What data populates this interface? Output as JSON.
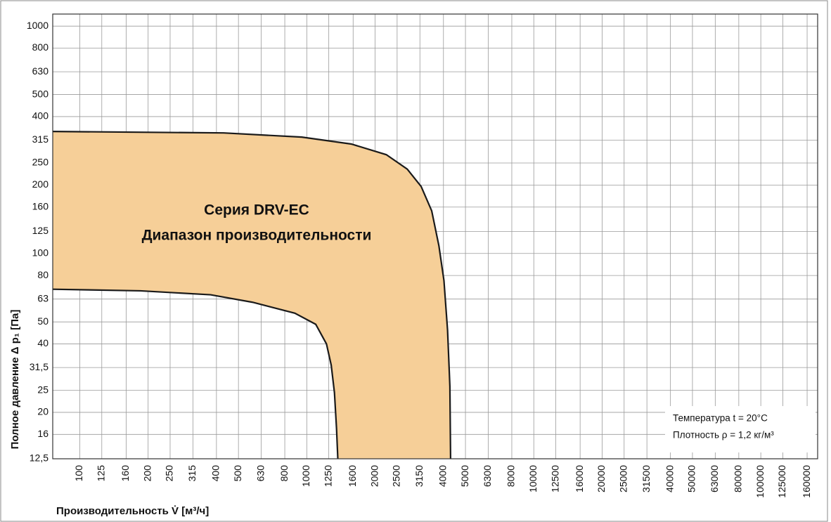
{
  "chart_data": {
    "type": "range",
    "y_label": "Полное давление Δ p₁ [Па]",
    "x_label": "Производительность V̇ [м³/ч]",
    "annotation_lines": [
      "Серия DRV-EC",
      "Диапазон производительности"
    ],
    "notes": [
      "Температура t = 20°C",
      "Плотность ρ = 1,2 кг/м³"
    ],
    "log_x": true,
    "log_y": true,
    "grid": true,
    "fill_color": "#f6cf98",
    "edge_color": "#1a1a1a",
    "xlim": [
      76,
      178000
    ],
    "ylim": [
      12.5,
      1130
    ],
    "xticks": [
      100,
      125,
      160,
      200,
      250,
      315,
      400,
      500,
      630,
      800,
      1000,
      1250,
      1600,
      2000,
      2500,
      3150,
      4000,
      5000,
      6300,
      8000,
      10000,
      12500,
      16000,
      20000,
      25000,
      31500,
      40000,
      50000,
      63000,
      80000,
      100000,
      125000,
      160000
    ],
    "yticks": [
      1000,
      800,
      630,
      500,
      400,
      315,
      250,
      200,
      160,
      125,
      100,
      80,
      63,
      50,
      40,
      {
        "value": 31.5,
        "label": "31,5"
      },
      25,
      20,
      16,
      {
        "value": 12.5,
        "label": "12,5"
      }
    ],
    "series": [
      {
        "x": [
          76,
          430,
          950,
          1570,
          2240,
          2770,
          3190,
          3550,
          3820,
          4020,
          4170,
          4270,
          4300
        ],
        "values": [
          344,
          339,
          325,
          303,
          272,
          235,
          197,
          154,
          108,
          76,
          46,
          26,
          12.5
        ]
      },
      {
        "x": [
          76,
          185,
          377,
          577,
          886,
          1095,
          1221,
          1281,
          1324,
          1352,
          1370
        ],
        "values": [
          69.6,
          68.5,
          65.8,
          61,
          54.6,
          48.8,
          40,
          32.3,
          24.4,
          17,
          12.5
        ]
      }
    ]
  }
}
